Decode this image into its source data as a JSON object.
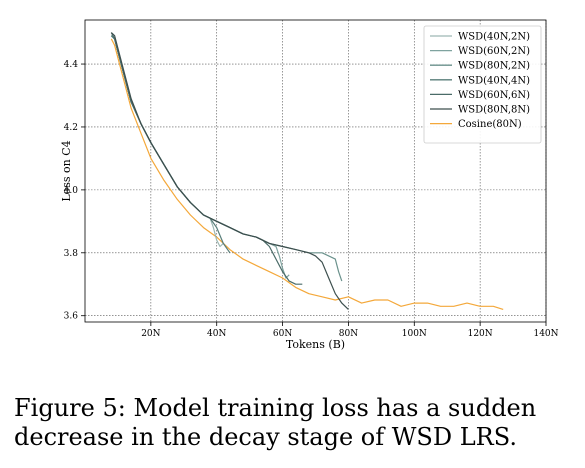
{
  "caption": "Figure 5: Model training loss has a sudden decrease in the decay stage of WSD LRS.",
  "chart_data": {
    "type": "line",
    "xlabel": "Tokens (B)",
    "ylabel": "Loss on C4",
    "xlim": [
      0,
      140
    ],
    "ylim": [
      3.58,
      4.54
    ],
    "grid": true,
    "grid_style": "dotted",
    "legend_position": "top-right",
    "x_ticks": [
      20,
      40,
      60,
      80,
      100,
      120,
      140
    ],
    "x_tick_labels": [
      "20N",
      "40N",
      "60N",
      "80N",
      "100N",
      "120N",
      "140N"
    ],
    "y_ticks": [
      3.6,
      3.8,
      4.0,
      4.2,
      4.4
    ],
    "y_tick_labels": [
      "3.6",
      "3.8",
      "4.0",
      "4.2",
      "4.4"
    ],
    "series": [
      {
        "name": "WSD(40N,2N)",
        "color": "#9db7b3",
        "x": [
          8,
          9,
          10,
          12,
          14,
          17,
          20,
          24,
          28,
          32,
          36,
          38,
          39,
          40,
          41,
          42
        ],
        "y": [
          4.49,
          4.48,
          4.44,
          4.36,
          4.28,
          4.21,
          4.15,
          4.08,
          4.01,
          3.96,
          3.92,
          3.91,
          3.88,
          3.84,
          3.82,
          3.83
        ]
      },
      {
        "name": "WSD(60N,2N)",
        "color": "#7fa39f",
        "x": [
          8,
          9,
          10,
          12,
          14,
          17,
          20,
          24,
          28,
          32,
          36,
          40,
          44,
          48,
          52,
          56,
          58,
          59,
          60,
          61,
          62
        ],
        "y": [
          4.49,
          4.48,
          4.44,
          4.36,
          4.28,
          4.21,
          4.15,
          4.08,
          4.01,
          3.96,
          3.92,
          3.9,
          3.88,
          3.86,
          3.85,
          3.83,
          3.82,
          3.79,
          3.75,
          3.72,
          3.73
        ]
      },
      {
        "name": "WSD(80N,2N)",
        "color": "#6a918c",
        "x": [
          8,
          9,
          10,
          12,
          14,
          17,
          20,
          24,
          28,
          32,
          36,
          40,
          44,
          48,
          52,
          56,
          60,
          64,
          68,
          72,
          76,
          77,
          78
        ],
        "y": [
          4.49,
          4.48,
          4.44,
          4.36,
          4.28,
          4.21,
          4.15,
          4.08,
          4.01,
          3.96,
          3.92,
          3.9,
          3.88,
          3.86,
          3.85,
          3.83,
          3.82,
          3.81,
          3.8,
          3.8,
          3.78,
          3.74,
          3.71
        ]
      },
      {
        "name": "WSD(40N,4N)",
        "color": "#587e7a",
        "x": [
          8,
          9,
          10,
          12,
          14,
          17,
          20,
          24,
          28,
          32,
          36,
          38,
          40,
          42,
          44
        ],
        "y": [
          4.49,
          4.48,
          4.44,
          4.36,
          4.28,
          4.21,
          4.15,
          4.08,
          4.01,
          3.96,
          3.92,
          3.91,
          3.88,
          3.83,
          3.8
        ]
      },
      {
        "name": "WSD(60N,6N)",
        "color": "#4a6b68",
        "x": [
          8,
          9,
          10,
          12,
          14,
          17,
          20,
          24,
          28,
          32,
          36,
          40,
          44,
          48,
          52,
          54,
          56,
          58,
          60,
          62,
          64,
          66
        ],
        "y": [
          4.5,
          4.48,
          4.44,
          4.36,
          4.28,
          4.21,
          4.15,
          4.08,
          4.01,
          3.96,
          3.92,
          3.9,
          3.88,
          3.86,
          3.85,
          3.84,
          3.82,
          3.78,
          3.74,
          3.71,
          3.7,
          3.7
        ]
      },
      {
        "name": "WSD(80N,8N)",
        "color": "#3d4f4e",
        "x": [
          8,
          9,
          10,
          12,
          14,
          17,
          20,
          24,
          28,
          32,
          36,
          40,
          44,
          48,
          52,
          56,
          60,
          64,
          68,
          70,
          72,
          74,
          76,
          78,
          80
        ],
        "y": [
          4.5,
          4.49,
          4.45,
          4.37,
          4.29,
          4.21,
          4.15,
          4.08,
          4.01,
          3.96,
          3.92,
          3.9,
          3.88,
          3.86,
          3.85,
          3.83,
          3.82,
          3.81,
          3.8,
          3.79,
          3.77,
          3.72,
          3.67,
          3.64,
          3.62
        ]
      },
      {
        "name": "Cosine(80N)",
        "color": "#f4a83a",
        "x": [
          8,
          9,
          10,
          12,
          14,
          17,
          20,
          24,
          28,
          32,
          36,
          40,
          44,
          48,
          52,
          56,
          60,
          64,
          68,
          72,
          76,
          80,
          84,
          88,
          92,
          96,
          100,
          104,
          108,
          112,
          116,
          120,
          124,
          127
        ],
        "y": [
          4.48,
          4.46,
          4.42,
          4.34,
          4.26,
          4.18,
          4.1,
          4.03,
          3.97,
          3.92,
          3.88,
          3.85,
          3.81,
          3.78,
          3.76,
          3.74,
          3.72,
          3.69,
          3.67,
          3.66,
          3.65,
          3.66,
          3.64,
          3.65,
          3.65,
          3.63,
          3.64,
          3.64,
          3.63,
          3.63,
          3.64,
          3.63,
          3.63,
          3.62
        ]
      }
    ]
  }
}
